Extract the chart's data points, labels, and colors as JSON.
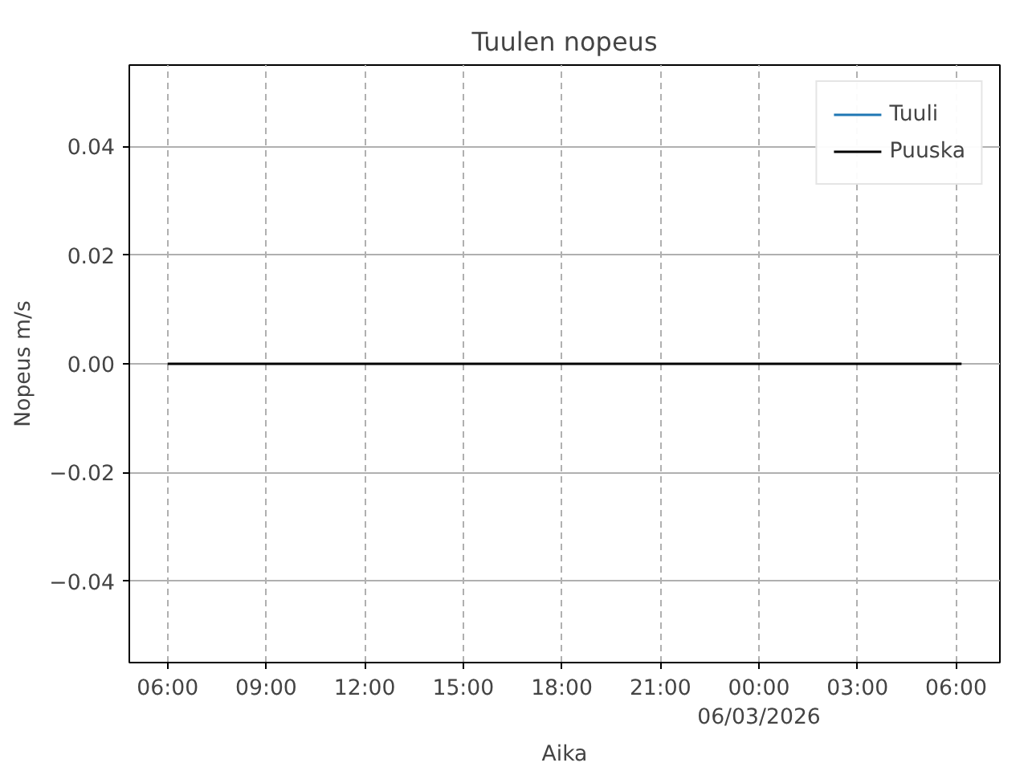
{
  "chart_data": {
    "type": "line",
    "title": "Tuulen nopeus",
    "xlabel": "Aika",
    "ylabel": "Nopeus m/s",
    "x": [
      "2026-03-05T06:00",
      "2026-03-05T09:00",
      "2026-03-05T12:00",
      "2026-03-05T15:00",
      "2026-03-05T18:00",
      "2026-03-05T21:00",
      "2026-03-06T00:00",
      "2026-03-06T03:00",
      "2026-03-06T06:00",
      "2026-03-06T06:10"
    ],
    "series": [
      {
        "name": "Tuuli",
        "color": "#1f77b4",
        "values": [
          null,
          null,
          null,
          null,
          null,
          null,
          null,
          null,
          null,
          null
        ]
      },
      {
        "name": "Puuska",
        "color": "#000000",
        "values": [
          0,
          0,
          0,
          0,
          0,
          0,
          0,
          0,
          0,
          0
        ]
      }
    ],
    "xlim": [
      "2026-03-05T04:50",
      "2026-03-06T07:20"
    ],
    "xticks": [
      {
        "value": "2026-03-05T06:00",
        "label": "06:00"
      },
      {
        "value": "2026-03-05T09:00",
        "label": "09:00"
      },
      {
        "value": "2026-03-05T12:00",
        "label": "12:00"
      },
      {
        "value": "2026-03-05T15:00",
        "label": "15:00"
      },
      {
        "value": "2026-03-05T18:00",
        "label": "18:00"
      },
      {
        "value": "2026-03-05T21:00",
        "label": "21:00"
      },
      {
        "value": "2026-03-06T00:00",
        "label": "00:00\n06/03/2026"
      },
      {
        "value": "2026-03-06T03:00",
        "label": "03:00"
      },
      {
        "value": "2026-03-06T06:00",
        "label": "06:00"
      }
    ],
    "ylim": [
      -0.055,
      0.055
    ],
    "yticks": [
      {
        "value": -0.04,
        "label": "−0.04"
      },
      {
        "value": -0.02,
        "label": "−0.02"
      },
      {
        "value": 0,
        "label": "0.00"
      },
      {
        "value": 0.02,
        "label": "0.02"
      },
      {
        "value": 0.04,
        "label": "0.04"
      }
    ],
    "grid": true,
    "legend": "top right",
    "line_style": "solid",
    "marker": "none"
  }
}
